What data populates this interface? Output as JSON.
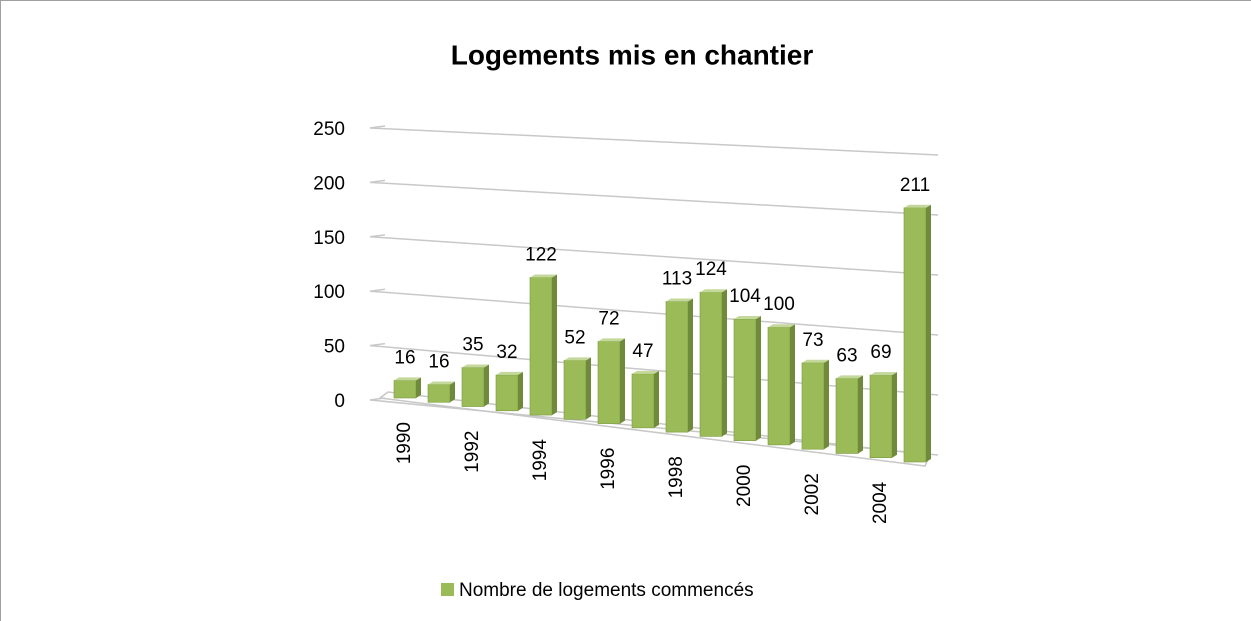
{
  "chart_data": {
    "type": "bar3d",
    "title": "Logements mis en chantier",
    "categories": [
      "1990",
      null,
      "1992",
      null,
      "1994",
      null,
      "1996",
      null,
      "1998",
      null,
      "2000",
      null,
      "2002",
      null,
      "2004",
      null
    ],
    "series": [
      {
        "name": "Nombre de logements commencés",
        "color": "#9bbb59",
        "values": [
          16,
          16,
          35,
          32,
          122,
          52,
          72,
          47,
          113,
          124,
          104,
          100,
          73,
          63,
          69,
          211
        ]
      }
    ],
    "ylim": [
      0,
      250
    ],
    "yticks": [
      0,
      50,
      100,
      150,
      200,
      250
    ],
    "grid": true,
    "legend": "bottom"
  }
}
